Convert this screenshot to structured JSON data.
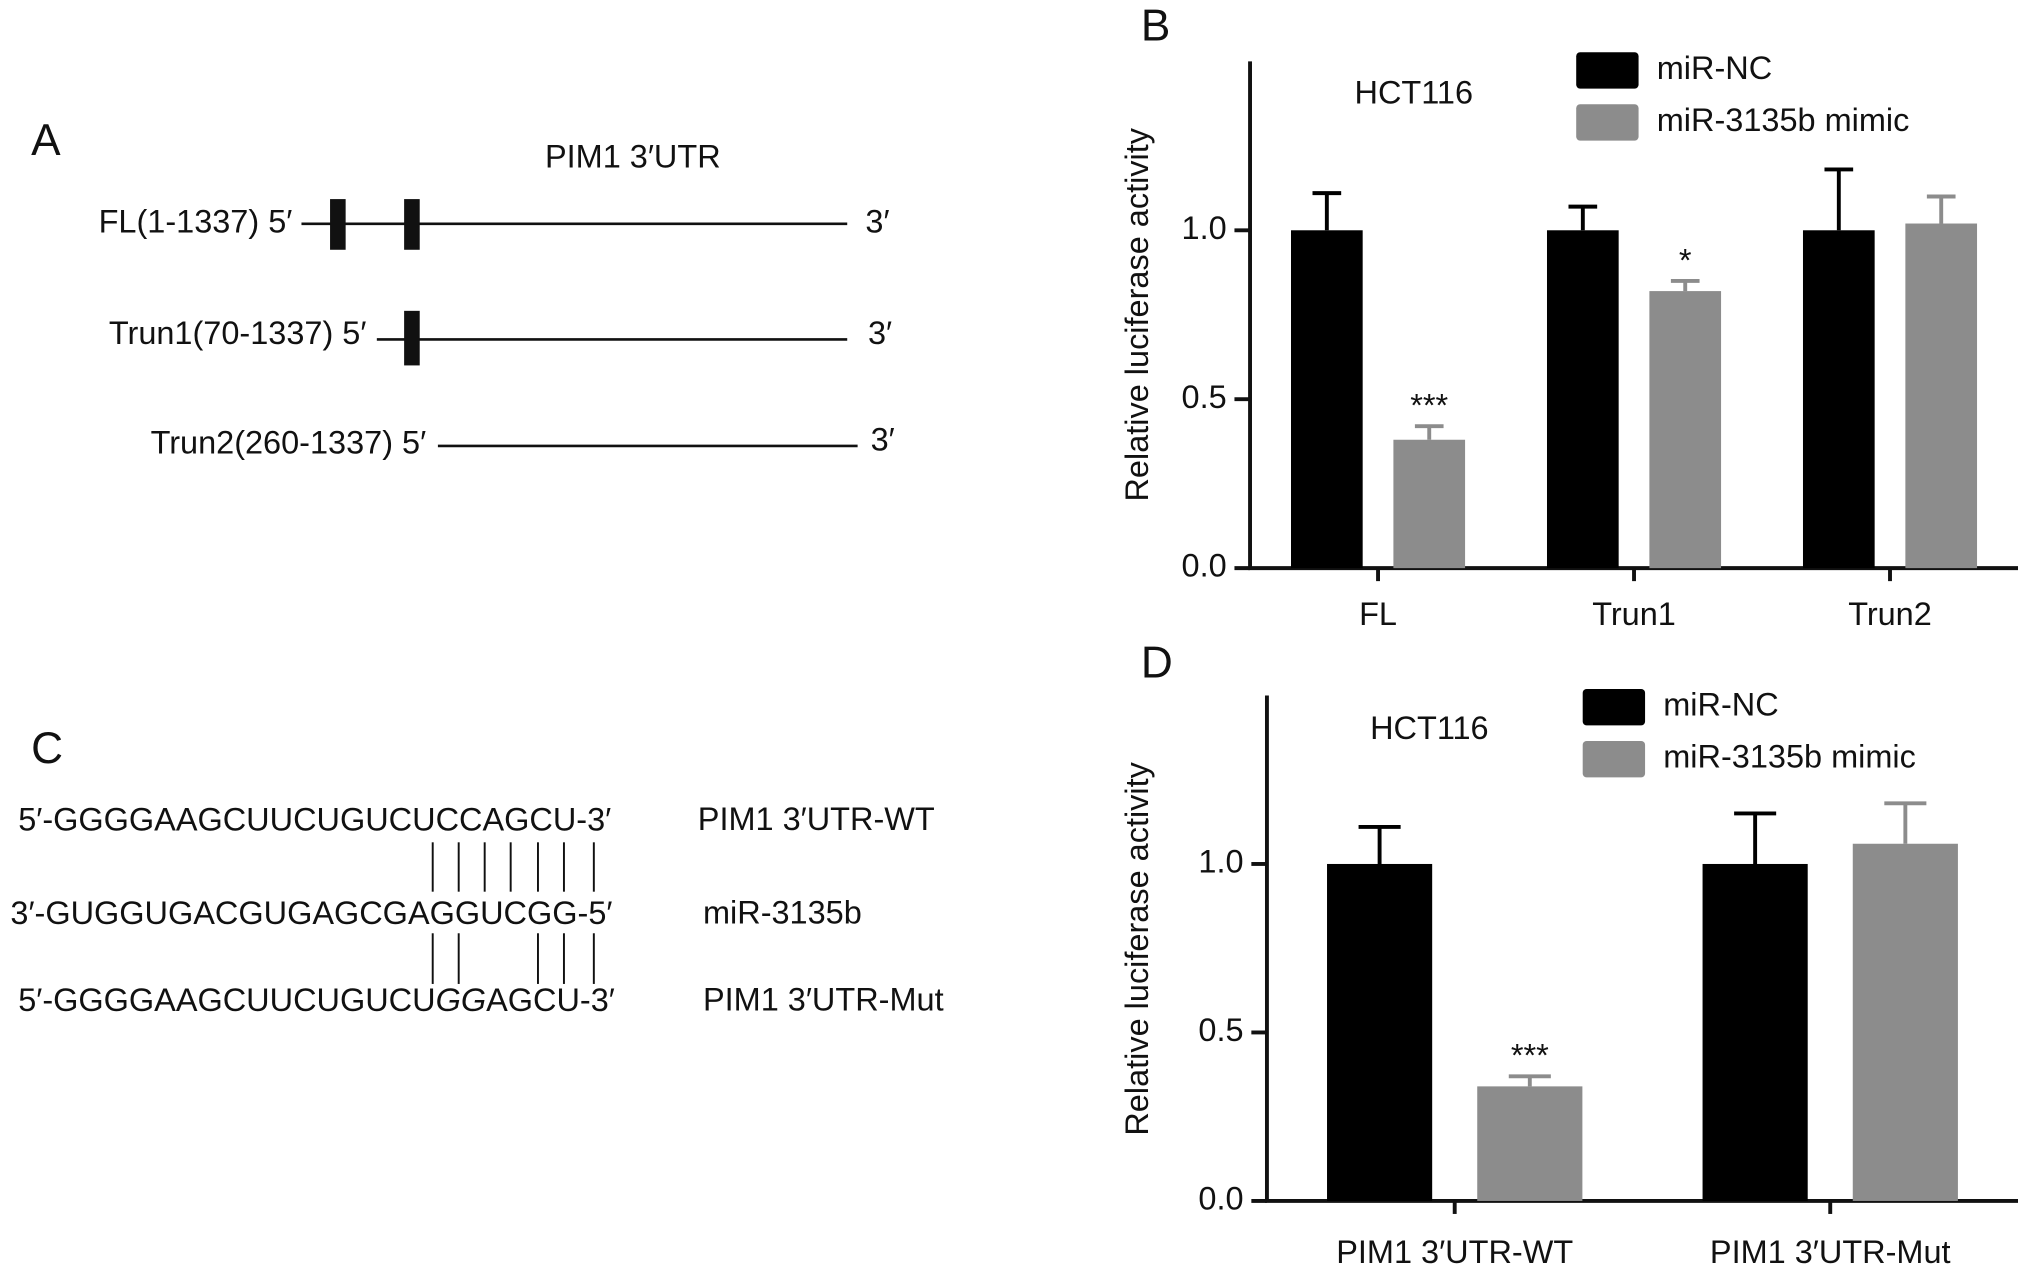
{
  "panel_a": {
    "label": "A",
    "title": "PIM1 3′UTR",
    "constructs": [
      {
        "name": "FL(1-1337) 5′",
        "end": "3′"
      },
      {
        "name": "Trun1(70-1337) 5′",
        "end": "3′"
      },
      {
        "name": "Trun2(260-1337) 5′",
        "end": "3′"
      }
    ]
  },
  "panel_c": {
    "label": "C",
    "rows": [
      {
        "sequence": [
          "5′-GGGGAAGCUUCUGUCUCCAGCU-3′"
        ],
        "name": "PIM1 3′UTR-WT"
      },
      {
        "sequence": [
          "3′-GUGGUGACGUGAGCGAGGUCGG-5′"
        ],
        "name": "miR-3135b"
      },
      {
        "sequence": [
          "5′-GGGGAAGCUUCUGUCU",
          "GG",
          "AGCU-3′"
        ],
        "name": "PIM1 3′UTR-Mut"
      }
    ]
  },
  "chart_data": [
    {
      "type": "bar",
      "panel": "B",
      "title": "HCT116",
      "y_label": "Relative luciferase activity",
      "categories": [
        "FL",
        "Trun1",
        "Trun2"
      ],
      "series": [
        {
          "name": "miR-NC",
          "color": "#000000",
          "values": [
            1.0,
            1.0,
            1.0
          ],
          "errors": [
            0.11,
            0.07,
            0.18
          ]
        },
        {
          "name": "miR-3135b mimic",
          "color": "#8c8c8c",
          "values": [
            0.38,
            0.82,
            1.02
          ],
          "errors": [
            0.04,
            0.03,
            0.08
          ],
          "significance": [
            "***",
            "*",
            null
          ]
        }
      ],
      "ylim": [
        0,
        1.5
      ],
      "yticks": [
        {
          "value": 0,
          "label": "0.0"
        },
        0.5,
        {
          "value": 1,
          "label": "1.0"
        }
      ]
    },
    {
      "type": "bar",
      "panel": "D",
      "title": "HCT116",
      "y_label": "Relative luciferase activity",
      "categories": [
        "PIM1 3′UTR-WT",
        "PIM1 3′UTR-Mut"
      ],
      "series": [
        {
          "name": "miR-NC",
          "color": "#000000",
          "values": [
            1.0,
            1.0
          ],
          "errors": [
            0.11,
            0.15
          ]
        },
        {
          "name": "miR-3135b mimic",
          "color": "#8c8c8c",
          "values": [
            0.34,
            1.06
          ],
          "errors": [
            0.03,
            0.12
          ],
          "significance": [
            "***",
            null
          ]
        }
      ],
      "ylim": [
        0,
        1.5
      ],
      "yticks": [
        {
          "value": 0,
          "label": "0.0"
        },
        0.5,
        {
          "value": 1,
          "label": "1.0"
        }
      ]
    }
  ]
}
